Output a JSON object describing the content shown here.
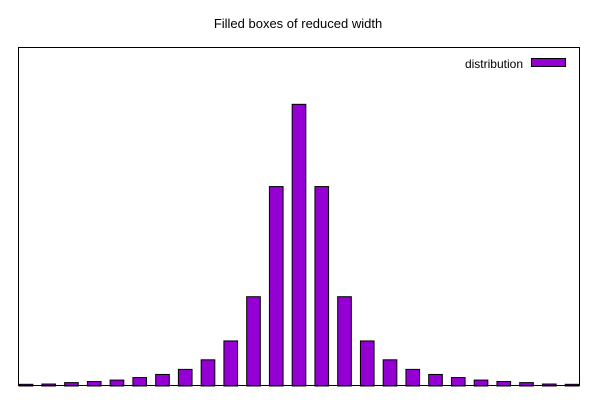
{
  "chart_data": {
    "type": "bar",
    "title": "Filled boxes of reduced width",
    "xlabel": "",
    "ylabel": "",
    "grid": false,
    "legend_position": "top-right",
    "x": [
      -12,
      -11,
      -10,
      -9,
      -8,
      -7,
      -6,
      -5,
      -4,
      -3,
      -2,
      -1,
      0,
      1,
      2,
      3,
      4,
      5,
      6,
      7,
      8,
      9,
      10,
      11,
      12
    ],
    "xlim": [
      -12.35,
      12.35
    ],
    "ylim": [
      0,
      1.2
    ],
    "series": [
      {
        "name": "distribution",
        "color": "#9400d3",
        "values": [
          0.006,
          0.007,
          0.012,
          0.016,
          0.021,
          0.03,
          0.041,
          0.059,
          0.093,
          0.16,
          0.317,
          0.708,
          1.0,
          0.708,
          0.317,
          0.16,
          0.093,
          0.059,
          0.041,
          0.03,
          0.021,
          0.016,
          0.012,
          0.007,
          0.006
        ]
      }
    ]
  }
}
